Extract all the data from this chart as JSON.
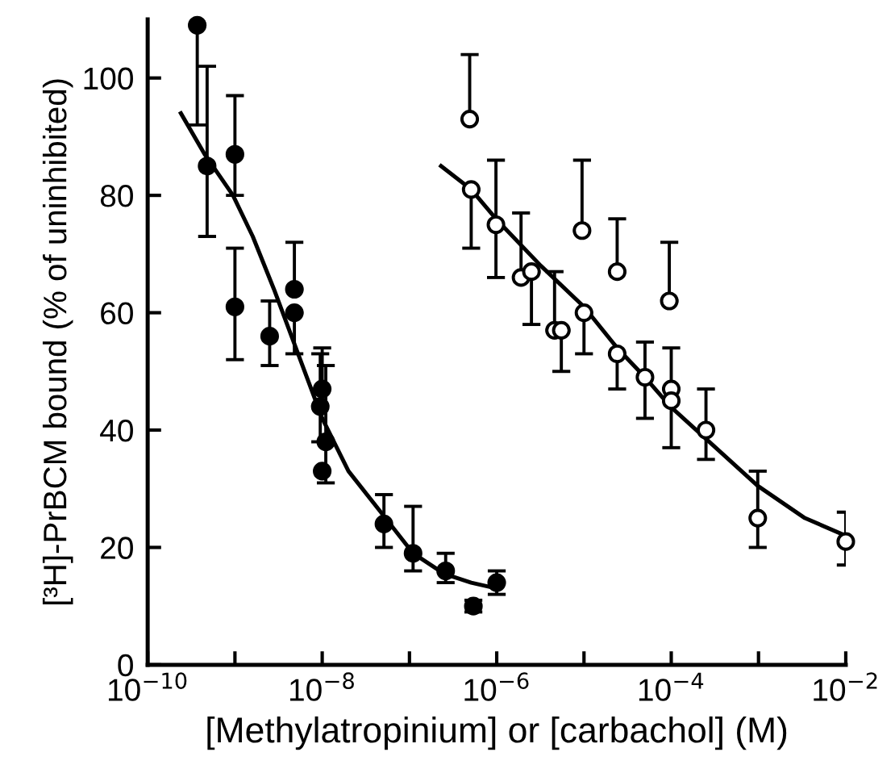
{
  "chart_data": {
    "type": "scatter",
    "xlabel": "[Methylatropinium] or [carbachol] (M)",
    "ylabel": "[³H]-PrBCM bound (% of uninhibited)",
    "log": "x",
    "xlim": [
      1e-10,
      0.01
    ],
    "xticks": [
      {
        "value": 1e-10,
        "label": "10$^{−10}$"
      },
      {
        "value": 1e-09,
        "label": null
      },
      {
        "value": 1e-08,
        "label": "10$^{−8}$"
      },
      {
        "value": 1e-07,
        "label": null
      },
      {
        "value": 1e-06,
        "label": "10$^{−6}$"
      },
      {
        "value": 1e-05,
        "label": null
      },
      {
        "value": 0.0001,
        "label": "10$^{−4}$"
      },
      {
        "value": 0.001,
        "label": null
      },
      {
        "value": 0.01,
        "label": "10$^{−2}$"
      }
    ],
    "ylim": [
      0,
      110
    ],
    "yticks": [
      0,
      20,
      40,
      60,
      80,
      100
    ],
    "grid": false,
    "legend": false,
    "marker": "circle",
    "series": [
      {
        "color": "#000000",
        "x": [
          3.7e-10,
          4.8e-10,
          1e-09,
          1e-09,
          2.5e-09,
          4.8e-09,
          4.8e-09,
          1e-08,
          9.5e-09,
          1.1e-08,
          1e-08,
          5.1e-08,
          1.1e-07,
          2.6e-07,
          5.4e-07,
          1e-06
        ],
        "values": [
          109,
          85,
          87,
          61,
          56,
          64,
          60,
          47,
          44,
          38,
          33,
          24,
          19,
          16,
          10,
          14
        ],
        "errors": [
          [
            92,
            109
          ],
          [
            73,
            102
          ],
          [
            80,
            97
          ],
          [
            52,
            71
          ],
          [
            51,
            62
          ],
          [
            64,
            72
          ],
          [
            53,
            60
          ],
          [
            47,
            54
          ],
          [
            38,
            53
          ],
          [
            31,
            51
          ],
          null,
          [
            20,
            29
          ],
          [
            16,
            27
          ],
          [
            14,
            19
          ],
          [
            9,
            11
          ],
          [
            12,
            16
          ]
        ]
      },
      {
        "color": "#ffffff",
        "x": [
          4.9e-07,
          5.1e-07,
          9.8e-07,
          1.9e-06,
          2.5e-06,
          4.6e-06,
          5.5e-06,
          9.5e-06,
          1e-05,
          2.4e-05,
          2.4e-05,
          5e-05,
          9.5e-05,
          0.0001,
          0.0001,
          0.00025,
          0.00098,
          0.01
        ],
        "values": [
          93,
          81,
          75,
          66,
          67,
          57,
          57,
          74,
          60,
          67,
          53,
          49,
          62,
          47,
          45,
          40,
          25,
          21
        ],
        "errors": [
          [
            93,
            104
          ],
          [
            71,
            81
          ],
          [
            66,
            86
          ],
          [
            66,
            77
          ],
          [
            58,
            67
          ],
          [
            57,
            67
          ],
          [
            50,
            57
          ],
          [
            74,
            86
          ],
          [
            53,
            60
          ],
          [
            67,
            76
          ],
          [
            47,
            53
          ],
          [
            42,
            55
          ],
          [
            62,
            72
          ],
          [
            47,
            54
          ],
          [
            37,
            45
          ],
          [
            35,
            47
          ],
          [
            20,
            33
          ],
          [
            17,
            26
          ]
        ]
      },
      {
        "type": "line",
        "color": "#000000",
        "marker": "none",
        "x": [
          2.4e-10,
          4.5e-10,
          9.5e-10,
          1.6e-09,
          2.8e-09,
          5.6e-09,
          1e-08,
          2e-08,
          4.7e-08,
          1.1e-07,
          2.5e-07,
          5.1e-07,
          1e-06
        ],
        "values": [
          94,
          87,
          80,
          73,
          64,
          52,
          42,
          33,
          26,
          19,
          15.5,
          14,
          13
        ]
      },
      {
        "type": "line",
        "color": "#000000",
        "marker": "none",
        "x": [
          2.3e-07,
          5.1e-07,
          9.8e-07,
          3.2e-06,
          1e-05,
          2.4e-05,
          5e-05,
          9.8e-05,
          0.00025,
          0.00098,
          0.0034,
          0.01
        ],
        "values": [
          85,
          81,
          76,
          68,
          61,
          54,
          49,
          44,
          38.5,
          30.5,
          25,
          22
        ]
      }
    ]
  }
}
